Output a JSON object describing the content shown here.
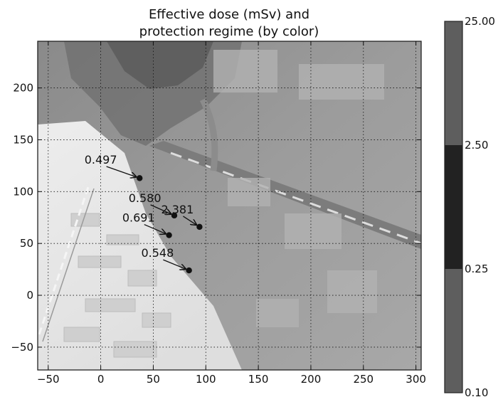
{
  "chart_data": {
    "type": "scatter",
    "title": [
      "Effective dose (mSv) and",
      "protection regime (by color)"
    ],
    "xlabel": "",
    "ylabel": "",
    "xlim": [
      -60,
      305
    ],
    "ylim": [
      -72,
      245
    ],
    "xticks": [
      -50,
      0,
      50,
      100,
      150,
      200,
      250,
      300
    ],
    "xtick_labels": [
      "−50",
      "0",
      "50",
      "100",
      "150",
      "200",
      "250",
      "300"
    ],
    "yticks": [
      -50,
      0,
      50,
      100,
      150,
      200
    ],
    "ytick_labels": [
      "−50",
      "0",
      "50",
      "100",
      "150",
      "200"
    ],
    "grid": true,
    "background": "grayscale aerial photograph of an industrial site with a dose plume overlay",
    "points": [
      {
        "x": 37,
        "y": 113,
        "label": "0.497",
        "label_x": 0,
        "label_y": 127
      },
      {
        "x": 70,
        "y": 77,
        "label": "0.580",
        "label_x": 42,
        "label_y": 90
      },
      {
        "x": 94,
        "y": 66,
        "label": "2.381",
        "label_x": 73,
        "label_y": 79
      },
      {
        "x": 65,
        "y": 58,
        "label": "0.691",
        "label_x": 36,
        "label_y": 71
      },
      {
        "x": 84,
        "y": 24,
        "label": "0.548",
        "label_x": 54,
        "label_y": 37
      }
    ],
    "colorbar": {
      "boundaries": [
        0.1,
        0.25,
        2.5,
        25.0
      ],
      "labels": [
        "0.10",
        "0.25",
        "2.50",
        "25.00"
      ],
      "colors": [
        "#5e5e5e",
        "#222222",
        "#5e5e5e"
      ]
    }
  }
}
